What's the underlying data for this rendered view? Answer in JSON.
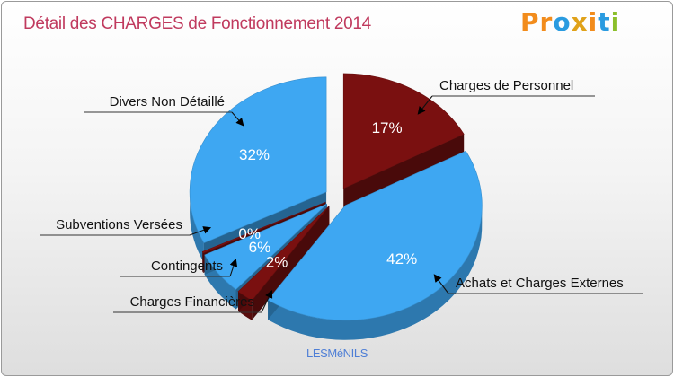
{
  "title": "Détail des CHARGES de Fonctionnement 2014",
  "logo": {
    "letters": [
      "P",
      "r",
      "o",
      "x",
      "i",
      "t",
      "i"
    ]
  },
  "footer": "LESMéNILS",
  "chart_data": {
    "type": "pie",
    "title": "Détail des CHARGES de Fonctionnement 2014",
    "slices": [
      {
        "label": "Charges de Personnel",
        "percent": 17,
        "value_label": "17%",
        "color": "#7a1010"
      },
      {
        "label": "Achats et Charges Externes",
        "percent": 42,
        "value_label": "42%",
        "color": "#3ea7f2"
      },
      {
        "label": "Charges Financières",
        "percent": 2,
        "value_label": "2%",
        "color": "#7a1010"
      },
      {
        "label": "Contingents",
        "percent": 6,
        "value_label": "6%",
        "color": "#3ea7f2"
      },
      {
        "label": "Subventions Versées",
        "percent": 0,
        "value_label": "0%",
        "color": "#7a1010"
      },
      {
        "label": "Divers Non Détaillé",
        "percent": 32,
        "value_label": "32%",
        "color": "#3ea7f2"
      }
    ]
  }
}
